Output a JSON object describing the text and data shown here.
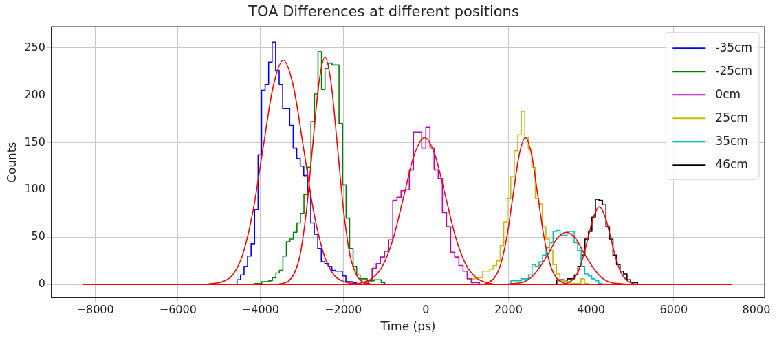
{
  "chart_data": {
    "type": "histogram",
    "title": "TOA Differences at different positions",
    "xlabel": "Time (ps)",
    "ylabel": "Counts",
    "xlim": [
      -9060,
      8200
    ],
    "ylim": [
      -14,
      272
    ],
    "xticks": [
      {
        "value": -8000,
        "label": "−8000"
      },
      {
        "value": -6000,
        "label": "−6000"
      },
      {
        "value": -4000,
        "label": "−4000"
      },
      {
        "value": -2000,
        "label": "−2000"
      },
      0,
      2000,
      4000,
      6000,
      8000
    ],
    "yticks": [
      0,
      50,
      100,
      150,
      200,
      250
    ],
    "grid": true,
    "legend": "top right",
    "series": [
      {
        "type": "histogram",
        "name": "-35cm",
        "color": "#0000ff",
        "bins": [
          -4570,
          -4485,
          -4400,
          -4315,
          -4230,
          -4145,
          -4060,
          -3975,
          -3890,
          -3805,
          -3720,
          -3635,
          -3550,
          -3465,
          -3380,
          -3295,
          -3210,
          -3125,
          -3040,
          -2955,
          -2870,
          -2785,
          -2700,
          -2615,
          -2530,
          -2445,
          -2360,
          -2275,
          -2190,
          -2105,
          -2020,
          -1935,
          -1850,
          -1765,
          -1680
        ],
        "values": [
          5,
          10,
          19,
          30,
          43,
          79,
          137,
          205,
          211,
          235,
          256,
          226,
          211,
          186,
          186,
          168,
          144,
          133,
          125,
          115,
          99,
          65,
          53,
          38,
          24,
          22,
          19,
          15,
          14,
          14,
          9,
          3,
          3,
          2
        ]
      },
      {
        "type": "histogram",
        "name": "-25cm",
        "color": "#008000",
        "bins": [
          -4140,
          -4055,
          -3970,
          -3885,
          -3800,
          -3715,
          -3630,
          -3545,
          -3460,
          -3375,
          -3290,
          -3205,
          -3120,
          -3035,
          -2950,
          -2865,
          -2780,
          -2695,
          -2610,
          -2525,
          -2440,
          -2355,
          -2270,
          -2185,
          -2100,
          -2015,
          -1930,
          -1845,
          -1760,
          -1675,
          -1590,
          -1505,
          -1420,
          -1335,
          -1250,
          -1165,
          -1080,
          -995
        ],
        "values": [
          1,
          1,
          3,
          3,
          4,
          7,
          12,
          15,
          30,
          45,
          48,
          55,
          65,
          75,
          95,
          124,
          172,
          201,
          246,
          206,
          228,
          234,
          232,
          232,
          170,
          105,
          70,
          38,
          19,
          10,
          6,
          6,
          4,
          4,
          5,
          5,
          2
        ]
      },
      {
        "type": "histogram",
        "name": "0cm",
        "color": "#bf00bf",
        "bins": [
          -1500,
          -1400,
          -1300,
          -1200,
          -1100,
          -1000,
          -900,
          -800,
          -700,
          -600,
          -500,
          -400,
          -300,
          -200,
          -100,
          0,
          100,
          200,
          300,
          400,
          500,
          600,
          700,
          800,
          900,
          1000,
          1100,
          1200,
          1300
        ],
        "values": [
          1,
          4,
          17,
          22,
          29,
          35,
          47,
          89,
          92,
          99,
          100,
          121,
          161,
          161,
          144,
          166,
          144,
          121,
          112,
          76,
          61,
          34,
          29,
          20,
          14,
          6,
          2,
          2
        ]
      },
      {
        "type": "histogram",
        "name": "25cm",
        "color": "#bfbf00",
        "bins": [
          1120,
          1205,
          1290,
          1375,
          1460,
          1545,
          1630,
          1715,
          1800,
          1885,
          1970,
          2055,
          2140,
          2225,
          2310,
          2395,
          2480,
          2565,
          2650,
          2735,
          2820,
          2905,
          2990,
          3075,
          3160,
          3245,
          3330,
          3415,
          3500,
          3585,
          3670,
          3755,
          3840,
          3925
        ],
        "values": [
          6,
          7,
          7,
          14,
          14,
          16,
          20,
          25,
          41,
          66,
          91,
          114,
          141,
          158,
          183,
          155,
          143,
          124,
          91,
          85,
          61,
          48,
          36,
          21,
          11,
          4,
          4,
          2,
          1,
          1,
          1,
          6,
          1
        ]
      },
      {
        "type": "histogram",
        "name": "35cm",
        "color": "#00bfbf",
        "bins": [
          2060,
          2145,
          2230,
          2315,
          2400,
          2485,
          2570,
          2655,
          2740,
          2825,
          2910,
          2995,
          3080,
          3165,
          3250,
          3335,
          3420,
          3505,
          3590,
          3675,
          3760,
          3845,
          3930,
          4015,
          4100,
          4185,
          4270
        ],
        "values": [
          4,
          4,
          4,
          6,
          6,
          10,
          21,
          19,
          24,
          31,
          39,
          44,
          56,
          57,
          52,
          52,
          56,
          56,
          44,
          36,
          19,
          11,
          9,
          6,
          4,
          1
        ]
      },
      {
        "type": "histogram",
        "name": "46cm",
        "color": "#000000",
        "bins": [
          3170,
          3255,
          3340,
          3425,
          3510,
          3595,
          3680,
          3765,
          3850,
          3935,
          4020,
          4105,
          4190,
          4275,
          4360,
          4445,
          4530,
          4615,
          4700,
          4785,
          4870,
          4955,
          5040,
          5125
        ],
        "values": [
          5,
          5,
          4,
          6,
          6,
          10,
          19,
          31,
          48,
          56,
          71,
          90,
          89,
          84,
          61,
          48,
          31,
          21,
          14,
          11,
          5,
          2,
          2
        ]
      },
      {
        "type": "line",
        "color": "#ff0000",
        "x": [
          -8300,
          -5410,
          -5165,
          -4920,
          -4675,
          -4430,
          -4185,
          -3940,
          -3695,
          -3450,
          -3205,
          -2960,
          -2715,
          -2470,
          -2225,
          -1980,
          -1735,
          -1490,
          7400
        ],
        "values": [
          0,
          0,
          1,
          3,
          10,
          32,
          77,
          144,
          209,
          237,
          209,
          144,
          77,
          32,
          10,
          3,
          1,
          0,
          0
        ]
      },
      {
        "type": "line",
        "color": "#ff0000",
        "x": [
          -8300,
          -3640,
          -3490,
          -3340,
          -3190,
          -3040,
          -2890,
          -2740,
          -2590,
          -2440,
          -2290,
          -2140,
          -1990,
          -1840,
          -1690,
          -1540,
          -1390,
          -1240,
          7400
        ],
        "values": [
          0,
          0,
          1,
          3,
          11,
          32,
          78,
          146,
          212,
          240,
          212,
          146,
          78,
          32,
          11,
          3,
          1,
          0,
          0
        ]
      },
      {
        "type": "line",
        "color": "#ff0000",
        "x": [
          -8300,
          -2030,
          -1780,
          -1530,
          -1280,
          -1030,
          -780,
          -530,
          -280,
          -30,
          220,
          470,
          720,
          970,
          1220,
          1470,
          1720,
          1970,
          7400
        ],
        "values": [
          0,
          0,
          0,
          2,
          7,
          21,
          50,
          94,
          137,
          155,
          137,
          94,
          50,
          21,
          7,
          2,
          0,
          0,
          0
        ]
      },
      {
        "type": "line",
        "color": "#ff0000",
        "x": [
          -8300,
          1210,
          1360,
          1510,
          1660,
          1810,
          1960,
          2110,
          2260,
          2410,
          2560,
          2710,
          2860,
          3010,
          3160,
          3310,
          3460,
          3610,
          7400
        ],
        "values": [
          0,
          0,
          0,
          2,
          7,
          21,
          50,
          94,
          137,
          155,
          137,
          94,
          50,
          21,
          7,
          2,
          0,
          0,
          0
        ]
      },
      {
        "type": "line",
        "color": "#ff0000",
        "x": [
          -8300,
          1680,
          1895,
          2110,
          2325,
          2540,
          2755,
          2970,
          3185,
          3400,
          3615,
          3830,
          4045,
          4260,
          4475,
          4690,
          4905,
          5120,
          7400
        ],
        "values": [
          0,
          0,
          0,
          1,
          2,
          7,
          18,
          33,
          49,
          55,
          49,
          33,
          18,
          7,
          2,
          1,
          0,
          0,
          0
        ]
      },
      {
        "type": "line",
        "color": "#ff0000",
        "x": [
          -8300,
          3120,
          3255,
          3390,
          3525,
          3660,
          3795,
          3930,
          4065,
          4200,
          4335,
          4470,
          4605,
          4740,
          4875,
          5010,
          5145,
          5280,
          7400
        ],
        "values": [
          0,
          0,
          0,
          1,
          4,
          11,
          27,
          50,
          72,
          82,
          72,
          50,
          27,
          11,
          4,
          1,
          0,
          0,
          0
        ]
      }
    ]
  }
}
